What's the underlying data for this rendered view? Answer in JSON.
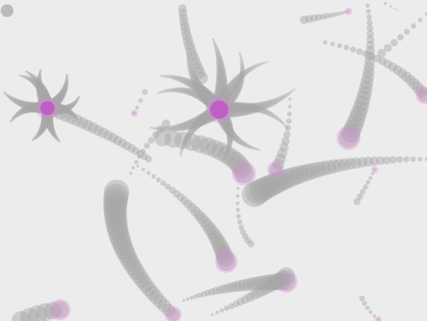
{
  "scene": {
    "background": "#ececec",
    "bead_color": "#a6a6a6",
    "bead_opacity": 0.45,
    "accent_color": "#d88ad8",
    "core_color": "#c24bc9"
  },
  "creatures": [
    {
      "name": "creature-left"
    },
    {
      "name": "creature-center"
    }
  ]
}
